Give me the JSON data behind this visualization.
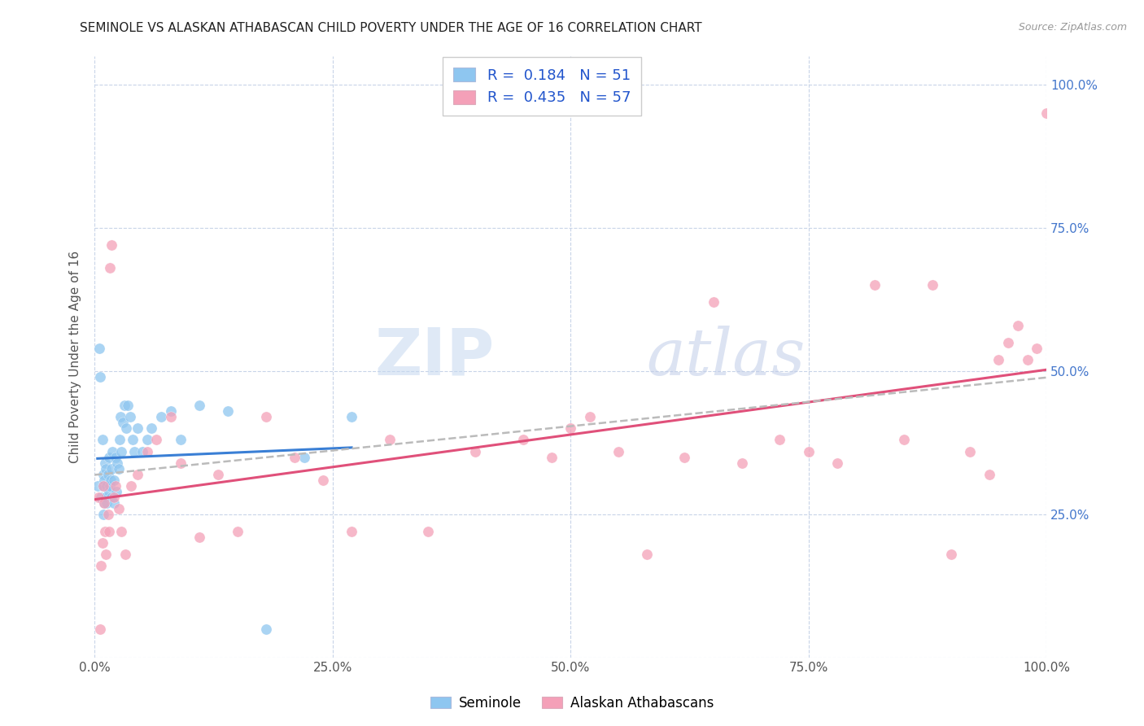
{
  "title": "SEMINOLE VS ALASKAN ATHABASCAN CHILD POVERTY UNDER THE AGE OF 16 CORRELATION CHART",
  "source": "Source: ZipAtlas.com",
  "ylabel": "Child Poverty Under the Age of 16",
  "watermark_zip": "ZIP",
  "watermark_atlas": "atlas",
  "seminole_R": 0.184,
  "seminole_N": 51,
  "athabascan_R": 0.435,
  "athabascan_N": 57,
  "seminole_color": "#8ec6f0",
  "athabascan_color": "#f4a0b8",
  "seminole_line_color": "#3a7fd5",
  "athabascan_line_color": "#e0507a",
  "dashed_line_color": "#bbbbbb",
  "background_color": "#ffffff",
  "grid_color": "#c8d4e8",
  "xlim": [
    0,
    1.0
  ],
  "ylim": [
    0,
    1.05
  ],
  "xticks": [
    0.0,
    0.25,
    0.5,
    0.75,
    1.0
  ],
  "yticks": [
    0.0,
    0.25,
    0.5,
    0.75,
    1.0
  ],
  "xticklabels": [
    "0.0%",
    "25.0%",
    "50.0%",
    "75.0%",
    "100.0%"
  ],
  "yticklabels_right": [
    "",
    "25.0%",
    "50.0%",
    "75.0%",
    "100.0%"
  ],
  "seminole_x": [
    0.003,
    0.005,
    0.006,
    0.007,
    0.008,
    0.008,
    0.009,
    0.009,
    0.01,
    0.01,
    0.011,
    0.012,
    0.012,
    0.013,
    0.013,
    0.014,
    0.015,
    0.015,
    0.016,
    0.017,
    0.018,
    0.018,
    0.019,
    0.02,
    0.02,
    0.022,
    0.023,
    0.024,
    0.025,
    0.026,
    0.027,
    0.028,
    0.03,
    0.031,
    0.033,
    0.035,
    0.037,
    0.04,
    0.042,
    0.045,
    0.05,
    0.055,
    0.06,
    0.07,
    0.08,
    0.09,
    0.11,
    0.14,
    0.18,
    0.22,
    0.27
  ],
  "seminole_y": [
    0.3,
    0.54,
    0.49,
    0.28,
    0.38,
    0.3,
    0.25,
    0.32,
    0.31,
    0.27,
    0.34,
    0.28,
    0.33,
    0.3,
    0.27,
    0.32,
    0.35,
    0.29,
    0.3,
    0.31,
    0.33,
    0.28,
    0.36,
    0.31,
    0.27,
    0.35,
    0.29,
    0.34,
    0.33,
    0.38,
    0.42,
    0.36,
    0.41,
    0.44,
    0.4,
    0.44,
    0.42,
    0.38,
    0.36,
    0.4,
    0.36,
    0.38,
    0.4,
    0.42,
    0.43,
    0.38,
    0.44,
    0.43,
    0.05,
    0.35,
    0.42
  ],
  "athabascan_x": [
    0.004,
    0.006,
    0.007,
    0.008,
    0.009,
    0.01,
    0.011,
    0.012,
    0.014,
    0.015,
    0.016,
    0.018,
    0.02,
    0.022,
    0.025,
    0.028,
    0.032,
    0.038,
    0.045,
    0.055,
    0.065,
    0.08,
    0.09,
    0.11,
    0.13,
    0.15,
    0.18,
    0.21,
    0.24,
    0.27,
    0.31,
    0.35,
    0.4,
    0.45,
    0.48,
    0.5,
    0.52,
    0.55,
    0.58,
    0.62,
    0.65,
    0.68,
    0.72,
    0.75,
    0.78,
    0.82,
    0.85,
    0.88,
    0.9,
    0.92,
    0.94,
    0.95,
    0.96,
    0.97,
    0.98,
    0.99,
    1.0
  ],
  "athabascan_y": [
    0.28,
    0.05,
    0.16,
    0.2,
    0.3,
    0.27,
    0.22,
    0.18,
    0.25,
    0.22,
    0.68,
    0.72,
    0.28,
    0.3,
    0.26,
    0.22,
    0.18,
    0.3,
    0.32,
    0.36,
    0.38,
    0.42,
    0.34,
    0.21,
    0.32,
    0.22,
    0.42,
    0.35,
    0.31,
    0.22,
    0.38,
    0.22,
    0.36,
    0.38,
    0.35,
    0.4,
    0.42,
    0.36,
    0.18,
    0.35,
    0.62,
    0.34,
    0.38,
    0.36,
    0.34,
    0.65,
    0.38,
    0.65,
    0.18,
    0.36,
    0.32,
    0.52,
    0.55,
    0.58,
    0.52,
    0.54,
    0.95
  ]
}
